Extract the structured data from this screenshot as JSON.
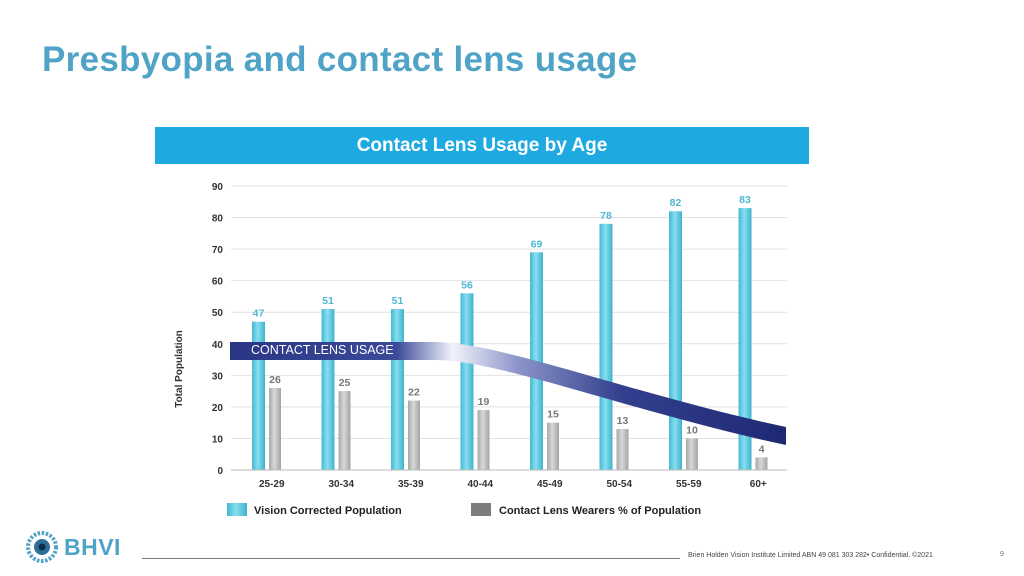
{
  "slide": {
    "title": "Presbyopia and contact lens usage",
    "logo_text": "BHVI",
    "footer_text": "Brien Holden Vision Institute Limited ABN 49 081 303 282• Confidential. ©2021",
    "page_number": "9"
  },
  "colors": {
    "title": "#4fa3c6",
    "banner": "#1fa9e1",
    "teal_bar": "#56c8dd",
    "grey_bar": "#b8b8b8",
    "band": "#2a3585"
  },
  "chart_data": {
    "type": "bar",
    "title": "Contact Lens Usage by Age",
    "ylabel": "Total Population",
    "xlabel": "",
    "ylim": [
      0,
      90
    ],
    "yticks": [
      "0",
      "10",
      "20",
      "30",
      "40",
      "50",
      "60",
      "70",
      "80",
      "90"
    ],
    "categories": [
      "25-29",
      "30-34",
      "35-39",
      "40-44",
      "45-49",
      "50-54",
      "55-59",
      "60+"
    ],
    "series": [
      {
        "name": "Vision Corrected Population",
        "values": [
          47,
          51,
          51,
          56,
          69,
          78,
          82,
          83
        ]
      },
      {
        "name": "Contact Lens Wearers % of Population",
        "values": [
          26,
          25,
          22,
          19,
          15,
          13,
          10,
          4
        ]
      }
    ],
    "annotation": "CONTACT LENS USAGE",
    "legend_position": "bottom"
  }
}
